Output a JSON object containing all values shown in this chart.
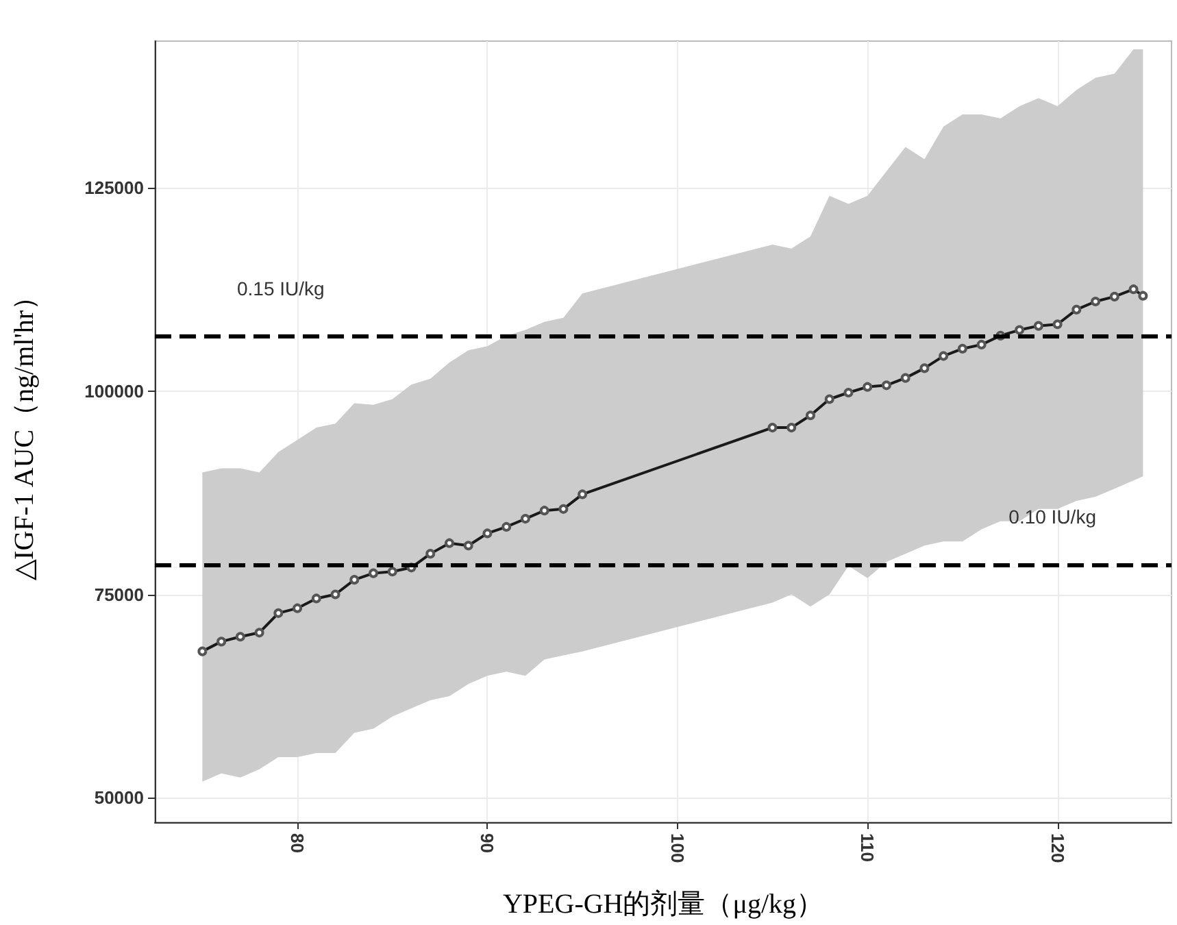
{
  "chart_data": {
    "type": "line",
    "xlabel": "YPEG-GH的剂量（μg/kg）",
    "ylabel": "△IGF-1 AUC（ng/ml'hr）",
    "xlim": [
      72.5,
      126
    ],
    "xticks": [
      80,
      90,
      100,
      110,
      120
    ],
    "ylim": [
      47000,
      143000
    ],
    "yticks": [
      50000,
      75000,
      100000,
      125000
    ],
    "grid": true,
    "marker": "circle",
    "line_style": "solid",
    "series": [
      {
        "color": "#1a1a1a",
        "x": [
          75,
          76,
          77,
          78,
          79,
          80,
          81,
          82,
          83,
          84,
          85,
          86,
          87,
          88,
          89,
          90,
          91,
          92,
          93,
          94,
          95,
          105,
          106,
          107,
          108,
          109,
          110,
          111,
          112,
          113,
          114,
          115,
          116,
          117,
          118,
          119,
          120,
          121,
          122,
          123,
          124,
          124.5
        ],
        "values": [
          68000,
          69200,
          69800,
          70300,
          72700,
          73300,
          74500,
          75000,
          76800,
          77600,
          77800,
          78300,
          80000,
          81300,
          81000,
          82500,
          83300,
          84300,
          85300,
          85500,
          87300,
          95500,
          95500,
          97000,
          99000,
          99800,
          100500,
          100700,
          101600,
          102800,
          104300,
          105200,
          105700,
          106800,
          107500,
          108000,
          108200,
          110000,
          111000,
          111600,
          112500,
          111700
        ],
        "lower": [
          52000,
          53000,
          52500,
          53500,
          55000,
          55000,
          55500,
          55500,
          58000,
          58500,
          60000,
          61000,
          62000,
          62500,
          64000,
          65000,
          65500,
          65000,
          67000,
          67500,
          68000,
          74000,
          75000,
          73500,
          75000,
          78500,
          77000,
          79000,
          80000,
          81000,
          81500,
          81500,
          83000,
          84000,
          84000,
          85500,
          85500,
          86500,
          87000,
          88000,
          89000,
          89500
        ],
        "upper": [
          90000,
          90500,
          90500,
          90000,
          92500,
          94000,
          95500,
          96000,
          98500,
          98300,
          99000,
          100800,
          101500,
          103500,
          105000,
          105500,
          106800,
          107500,
          108500,
          109000,
          112000,
          118000,
          117500,
          119000,
          124000,
          123000,
          124000,
          127000,
          130000,
          128500,
          132500,
          134000,
          134000,
          133500,
          135000,
          136000,
          135000,
          137000,
          138500,
          139000,
          142000,
          142000
        ]
      }
    ],
    "ref_lines": [
      {
        "axis": "y",
        "value": 106700,
        "label": "0.15 IU/kg",
        "line_style": "dashed",
        "color": "#000000"
      },
      {
        "axis": "y",
        "value": 78700,
        "label": "0.10 IU/kg",
        "line_style": "dashed",
        "color": "#000000"
      }
    ]
  }
}
